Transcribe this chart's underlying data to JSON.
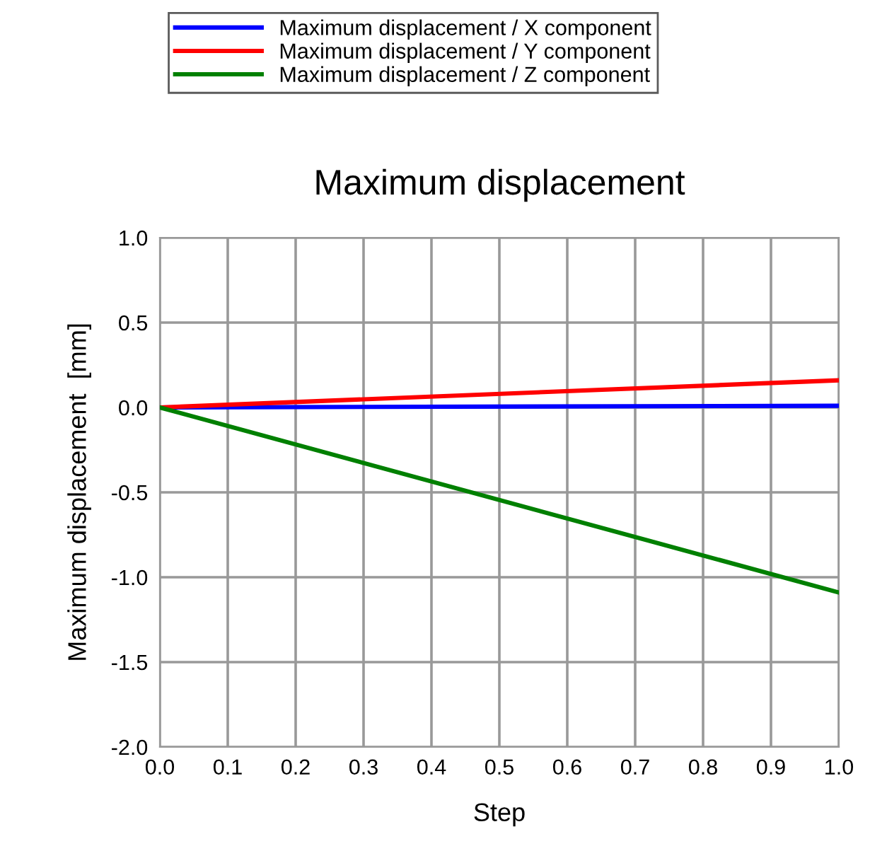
{
  "chart_data": {
    "type": "line",
    "title": "Maximum displacement",
    "xlabel": "Step",
    "ylabel": "Maximum displacement  [mm]",
    "x": [
      0.0,
      1.0
    ],
    "series": [
      {
        "name": "Maximum displacement / X component",
        "color": "#0000ff",
        "values": [
          0.0,
          0.01
        ]
      },
      {
        "name": "Maximum displacement / Y component",
        "color": "#ff0000",
        "values": [
          0.0,
          0.16
        ]
      },
      {
        "name": "Maximum displacement / Z component",
        "color": "#008000",
        "values": [
          0.0,
          -1.09
        ]
      }
    ],
    "xlim": [
      0.0,
      1.0
    ],
    "ylim": [
      -2.0,
      1.0
    ],
    "xticks": [
      {
        "value": 0,
        "label": "0.0"
      },
      0.1,
      0.2,
      0.3,
      0.4,
      0.5,
      0.6,
      0.7,
      0.8,
      0.9,
      {
        "value": 1,
        "label": "1.0"
      }
    ],
    "yticks": [
      {
        "value": -2,
        "label": "-2.0"
      },
      -1.5,
      {
        "value": -1,
        "label": "-1.0"
      },
      -0.5,
      {
        "value": 0,
        "label": "0.0"
      },
      0.5,
      {
        "value": 1,
        "label": "1.0"
      }
    ],
    "grid": true,
    "legend": "top",
    "marker": "none",
    "line_style": "solid"
  }
}
